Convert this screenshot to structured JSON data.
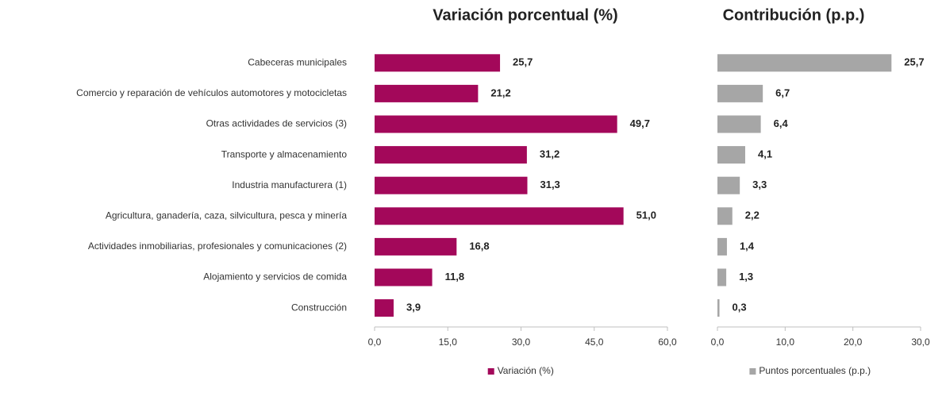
{
  "chart_data": [
    {
      "type": "hbar",
      "title": "Variación porcentual (%)",
      "categories": [
        "Cabeceras municipales",
        "Comercio y reparación de vehículos automotores y motocicletas",
        "Otras actividades de servicios (3)",
        "Transporte y almacenamiento",
        "Industria manufacturera (1)",
        "Agricultura, ganadería, caza, silvicultura, pesca y minería",
        "Actividades inmobiliarias, profesionales y comunicaciones (2)",
        "Alojamiento y servicios de comida",
        "Construcción"
      ],
      "series": [
        {
          "name": "Variación (%)",
          "color": "#a3085a",
          "values": [
            25.7,
            21.2,
            49.7,
            31.2,
            31.3,
            51.0,
            16.8,
            11.8,
            3.9
          ],
          "value_labels": [
            "25,7",
            "21,2",
            "49,7",
            "31,2",
            "31,3",
            "51,0",
            "16,8",
            "11,8",
            "3,9"
          ]
        }
      ],
      "xlim": [
        0,
        60
      ],
      "xticks": [
        {
          "value": 0,
          "label": "0,0"
        },
        {
          "value": 15,
          "label": "15,0"
        },
        {
          "value": 30,
          "label": "30,0"
        },
        {
          "value": 45,
          "label": "45,0"
        },
        {
          "value": 60,
          "label": "60,0"
        }
      ],
      "legend": "bottom"
    },
    {
      "type": "hbar",
      "title": "Contribución (p.p.)",
      "series": [
        {
          "name": "Puntos porcentuales (p.p.)",
          "color": "#a6a6a6",
          "values": [
            25.7,
            6.7,
            6.4,
            4.1,
            3.3,
            2.2,
            1.4,
            1.3,
            0.3
          ],
          "value_labels": [
            "25,7",
            "6,7",
            "6,4",
            "4,1",
            "3,3",
            "2,2",
            "1,4",
            "1,3",
            "0,3"
          ]
        }
      ],
      "xlim": [
        0,
        30
      ],
      "xticks": [
        {
          "value": 0,
          "label": "0,0"
        },
        {
          "value": 10,
          "label": "10,0"
        },
        {
          "value": 20,
          "label": "20,0"
        },
        {
          "value": 30,
          "label": "30,0"
        }
      ],
      "legend": "bottom"
    }
  ]
}
